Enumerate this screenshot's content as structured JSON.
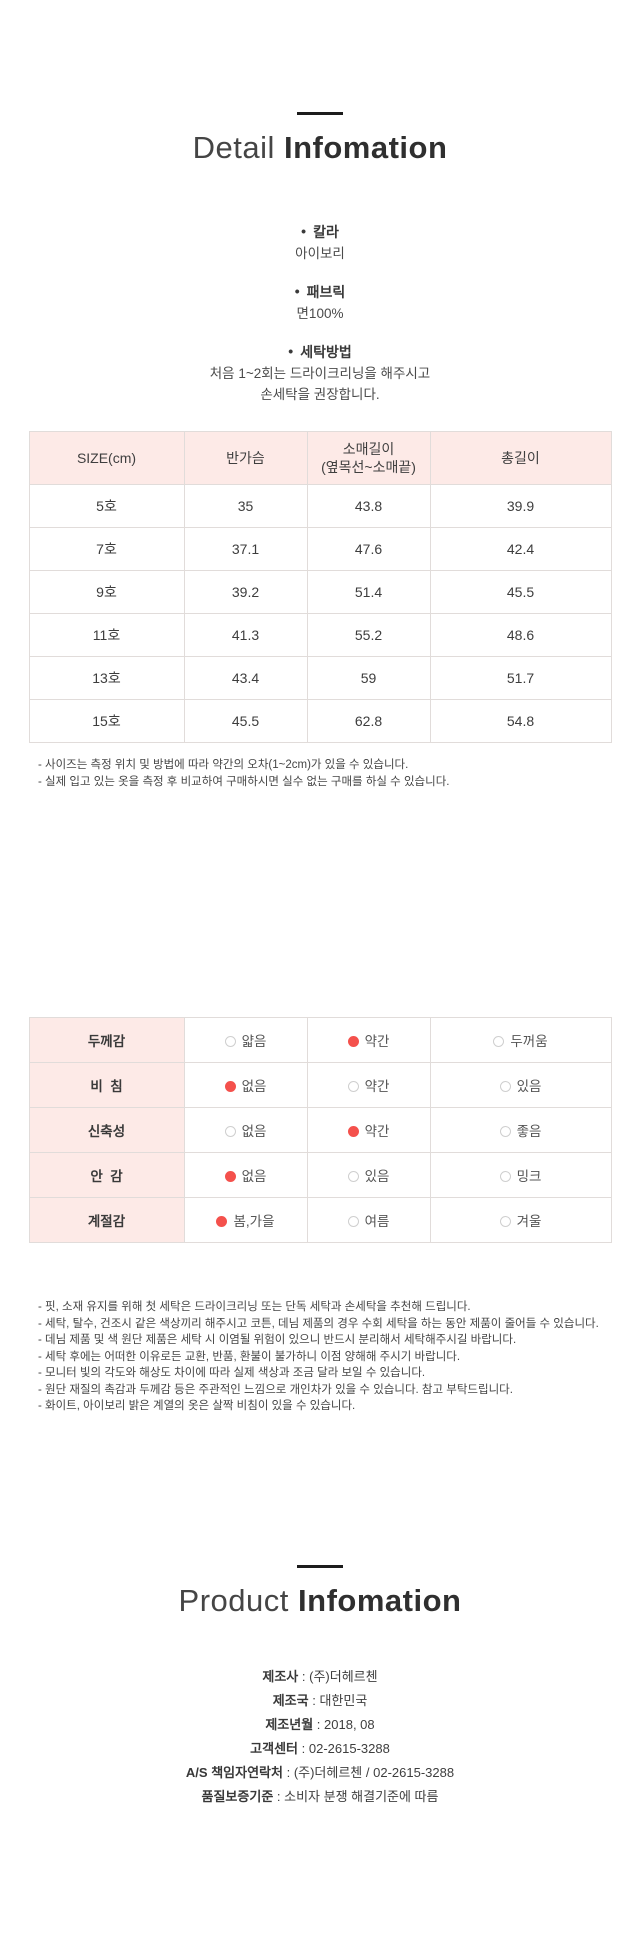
{
  "colors": {
    "accent_pink": "#fdeae7",
    "radio_selected_red": "#f4514c",
    "table_border": "#e1dcda"
  },
  "detail_section": {
    "title": {
      "light": "Detail",
      "bold": "Infomation"
    },
    "specs": [
      {
        "label": "칼라",
        "lines": [
          "아이보리"
        ]
      },
      {
        "label": "패브릭",
        "lines": [
          "면100%"
        ]
      },
      {
        "label": "세탁방법",
        "lines": [
          "처음 1~2회는 드라이크리닝을 해주시고",
          "손세탁을 권장합니다."
        ]
      }
    ]
  },
  "size_table": {
    "headers": [
      "SIZE(cm)",
      "반가슴",
      "소매길이\n(옆목선~소매끝)",
      "총길이"
    ],
    "rows": [
      [
        "5호",
        "35",
        "43.8",
        "39.9"
      ],
      [
        "7호",
        "37.1",
        "47.6",
        "42.4"
      ],
      [
        "9호",
        "39.2",
        "51.4",
        "45.5"
      ],
      [
        "11호",
        "41.3",
        "55.2",
        "48.6"
      ],
      [
        "13호",
        "43.4",
        "59",
        "51.7"
      ],
      [
        "15호",
        "45.5",
        "62.8",
        "54.8"
      ]
    ],
    "notes": [
      "- 사이즈는 측정 위치 및 방법에 따라 약간의 오차(1~2cm)가 있을 수 있습니다.",
      "- 실제 입고 있는 옷을 측정 후 비교하여 구매하시면 실수 없는 구매를 하실 수 있습니다."
    ]
  },
  "attribute_table": {
    "rows": [
      {
        "label": "두께감",
        "options": [
          {
            "text": "얇음",
            "selected": false
          },
          {
            "text": "약간",
            "selected": true
          },
          {
            "text": "두꺼움",
            "selected": false
          }
        ]
      },
      {
        "label": "비  침",
        "options": [
          {
            "text": "없음",
            "selected": true
          },
          {
            "text": "약간",
            "selected": false
          },
          {
            "text": "있음",
            "selected": false
          }
        ]
      },
      {
        "label": "신축성",
        "options": [
          {
            "text": "없음",
            "selected": false
          },
          {
            "text": "약간",
            "selected": true
          },
          {
            "text": "좋음",
            "selected": false
          }
        ]
      },
      {
        "label": "안  감",
        "options": [
          {
            "text": "없음",
            "selected": true
          },
          {
            "text": "있음",
            "selected": false
          },
          {
            "text": "밍크",
            "selected": false
          }
        ]
      },
      {
        "label": "계절감",
        "options": [
          {
            "text": "봄,가을",
            "selected": true
          },
          {
            "text": "여름",
            "selected": false
          },
          {
            "text": "겨울",
            "selected": false
          }
        ]
      }
    ]
  },
  "care_notes": [
    "- 핏, 소재 유지를 위해 첫 세탁은 드라이크리닝 또는 단독 세탁과 손세탁을 추천해 드립니다.",
    "- 세탁, 탈수, 건조시 같은 색상끼리 해주시고 코튼, 데님 제품의 경우 수회 세탁을 하는 동안 제품이 줄어들 수 있습니다.",
    "- 데님 제품 및 색 원단 제품은 세탁 시 이염될 위험이 있으니 반드시 분리해서 세탁해주시길 바랍니다.",
    "- 세탁 후에는 어떠한 이유로든 교환, 반품, 환불이 불가하니 이점 양해해 주시기 바랍니다.",
    "- 모니터 빛의 각도와 해상도 차이에 따라 실제 색상과 조금 달라 보일 수 있습니다.",
    "- 원단 재질의 촉감과 두께감 등은 주관적인 느낌으로 개인차가 있을 수 있습니다. 참고 부탁드립니다.",
    "- 화이트, 아이보리 밝은 계열의 옷은 살짝 비침이 있을 수 있습니다."
  ],
  "product_section": {
    "title": {
      "light": "Product",
      "bold": "Infomation"
    },
    "separator": " : ",
    "info": [
      {
        "label": "제조사",
        "value": "(주)더헤르첸"
      },
      {
        "label": "제조국",
        "value": "대한민국"
      },
      {
        "label": "제조년월",
        "value": "2018, 08"
      },
      {
        "label": "고객센터",
        "value": "02-2615-3288"
      },
      {
        "label": "A/S 책임자연락처",
        "value": "(주)더헤르첸 / 02-2615-3288"
      },
      {
        "label": "품질보증기준",
        "value": "소비자 분쟁 해결기준에 따름"
      }
    ]
  }
}
